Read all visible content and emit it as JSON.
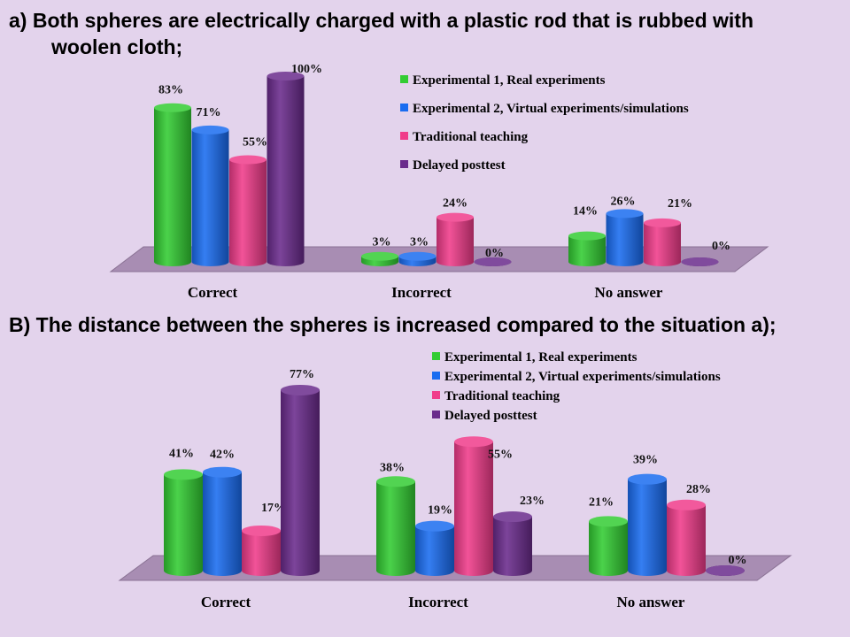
{
  "slide": {
    "heading_a_line1": "a) Both spheres are electrically charged with a plastic rod that is rubbed with",
    "heading_a_line2": "woolen cloth;",
    "heading_b": "B) The distance between the spheres is increased compared to the situation a);"
  },
  "colors": {
    "background": "#e3d3ec",
    "floor": "#a88db3",
    "Experimental 1, Real experiments": "#33cc33",
    "Experimental 2, Virtual experiments/simulations": "#1a6cf0",
    "Traditional teaching": "#f03c8a",
    "Delayed posttest": "#6a2b8c"
  },
  "chart_data": [
    {
      "type": "bar",
      "categories": [
        "Correct",
        "Incorrect",
        "No answer"
      ],
      "series": [
        {
          "name": "Experimental 1, Real experiments",
          "values": [
            83,
            3,
            14
          ],
          "labels": [
            "83%",
            "3%",
            "14%"
          ]
        },
        {
          "name": "Experimental 2, Virtual experiments/simulations",
          "values": [
            71,
            3,
            26
          ],
          "labels": [
            "71%",
            "3%",
            "26%"
          ]
        },
        {
          "name": "Traditional teaching",
          "values": [
            55,
            24,
            21
          ],
          "labels": [
            "55%",
            "24%",
            "21%"
          ]
        },
        {
          "name": "Delayed posttest",
          "values": [
            100,
            0,
            0
          ],
          "labels": [
            "100%",
            "0%",
            "0%"
          ]
        }
      ],
      "ylim": [
        0,
        100
      ],
      "grid": false,
      "legend": "top-right"
    },
    {
      "type": "bar",
      "categories": [
        "Correct",
        "Incorrect",
        "No answer"
      ],
      "series": [
        {
          "name": "Experimental 1, Real experiments",
          "values": [
            41,
            38,
            21
          ],
          "labels": [
            "41%",
            "38%",
            "21%"
          ]
        },
        {
          "name": "Experimental 2, Virtual experiments/simulations",
          "values": [
            42,
            19,
            39
          ],
          "labels": [
            "42%",
            "19%",
            "39%"
          ]
        },
        {
          "name": "Traditional teaching",
          "values": [
            17,
            55,
            28
          ],
          "labels": [
            "17%",
            "55%",
            "28%"
          ]
        },
        {
          "name": "Delayed posttest",
          "values": [
            77,
            23,
            0
          ],
          "labels": [
            "77%",
            "23%",
            "0%"
          ]
        }
      ],
      "ylim": [
        0,
        100
      ],
      "grid": false,
      "legend": "top-right"
    }
  ]
}
